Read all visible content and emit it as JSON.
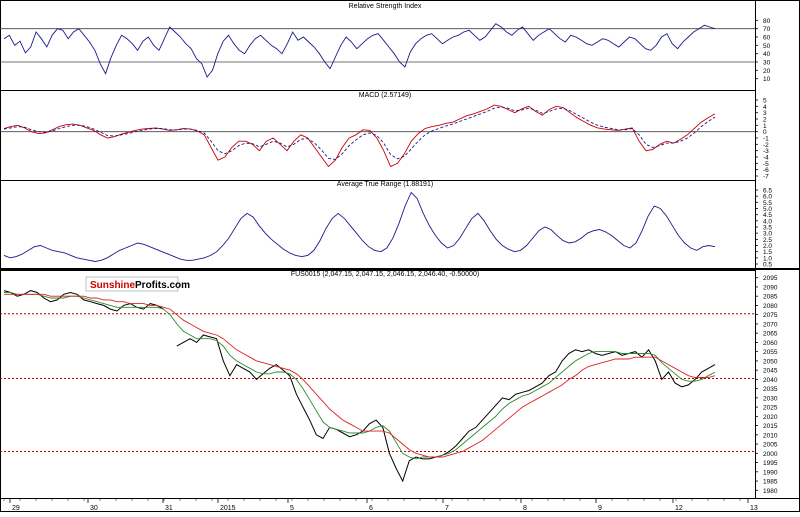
{
  "colors": {
    "background": "#ffffff",
    "frame": "#000000",
    "series_blue": "#1a1a8c",
    "signal_red": "#cc0000",
    "sma_green": "#2e8b2e",
    "ema_red": "#dd2222",
    "dashed_line": "#b00000",
    "level_line": "#444444",
    "logo_red": "#cc0000"
  },
  "logo": {
    "part1": "Sunshine",
    "part2": "Profits",
    "part3": ".com"
  },
  "chart_data": [
    {
      "type": "line",
      "title": "Relative Strength Index",
      "ylim": [
        0,
        90
      ],
      "yticks": [
        "80",
        "70",
        "60",
        "50",
        "40",
        "30",
        "20",
        "10"
      ],
      "reference_lines": [
        70,
        30
      ],
      "grid": false,
      "series": [
        {
          "values": [
            58,
            62,
            50,
            55,
            41,
            48,
            66,
            58,
            48,
            62,
            70,
            68,
            58,
            66,
            70,
            62,
            54,
            44,
            28,
            16,
            35,
            50,
            62,
            58,
            52,
            44,
            55,
            60,
            50,
            44,
            58,
            72,
            66,
            60,
            52,
            46,
            34,
            28,
            12,
            20,
            40,
            55,
            62,
            52,
            44,
            40,
            50,
            58,
            62,
            56,
            50,
            46,
            40,
            52,
            66,
            56,
            60,
            54,
            48,
            40,
            30,
            22,
            36,
            50,
            60,
            54,
            46,
            52,
            58,
            62,
            64,
            56,
            48,
            40,
            30,
            24,
            42,
            52,
            58,
            62,
            64,
            58,
            52,
            56,
            60,
            62,
            66,
            68,
            62,
            56,
            60,
            68,
            76,
            72,
            66,
            62,
            68,
            72,
            64,
            56,
            62,
            66,
            70,
            64,
            58,
            54,
            62,
            60,
            56,
            52,
            50,
            54,
            58,
            56,
            52,
            48,
            54,
            60,
            58,
            52,
            46,
            44,
            50,
            60,
            64,
            52,
            46,
            54,
            60,
            66,
            70,
            74,
            72,
            70
          ]
        }
      ]
    },
    {
      "type": "line",
      "title": "MACD (2.57149)",
      "ylim": [
        -7,
        5
      ],
      "yticks": [
        "5",
        "4",
        "3",
        "2",
        "1",
        "0",
        "-1",
        "-2",
        "-3",
        "-4",
        "-5",
        "-6",
        "-7"
      ],
      "reference_lines": [
        0
      ],
      "grid": false,
      "series": [
        {
          "values": [
            0.5,
            0.8,
            1.0,
            0.6,
            0.0,
            -0.3,
            -0.2,
            0.3,
            0.8,
            1.1,
            1.2,
            1.0,
            0.6,
            0.2,
            -0.5,
            -1.0,
            -0.8,
            -0.4,
            -0.1,
            0.2,
            0.4,
            0.5,
            0.6,
            0.4,
            0.2,
            0.3,
            0.5,
            0.4,
            0.1,
            -0.5,
            -2.5,
            -4.5,
            -4.0,
            -2.5,
            -1.5,
            -1.5,
            -2.0,
            -3.0,
            -1.5,
            -1.0,
            -2.0,
            -3.0,
            -1.5,
            -0.5,
            -1.0,
            -2.5,
            -4.0,
            -5.5,
            -4.5,
            -2.5,
            -1.0,
            -0.5,
            0.3,
            0.2,
            -1.0,
            -3.0,
            -5.5,
            -5.0,
            -3.5,
            -1.5,
            -0.3,
            0.5,
            0.8,
            1.0,
            1.3,
            1.5,
            2.0,
            2.5,
            2.8,
            3.2,
            3.6,
            4.2,
            4.0,
            3.5,
            3.0,
            3.6,
            4.0,
            3.2,
            2.6,
            3.5,
            4.0,
            3.8,
            3.0,
            2.2,
            1.6,
            1.0,
            0.6,
            0.4,
            0.3,
            0.2,
            0.4,
            0.6,
            -1.5,
            -3.0,
            -2.8,
            -2.0,
            -1.5,
            -1.8,
            -1.2,
            -0.5,
            0.5,
            1.5,
            2.2,
            2.8
          ]
        },
        {
          "values": [
            0.4,
            0.6,
            0.8,
            0.7,
            0.3,
            0.0,
            -0.1,
            0.1,
            0.5,
            0.8,
            1.0,
            1.0,
            0.8,
            0.4,
            -0.1,
            -0.6,
            -0.7,
            -0.5,
            -0.3,
            0.0,
            0.2,
            0.4,
            0.5,
            0.5,
            0.3,
            0.3,
            0.4,
            0.4,
            0.2,
            -0.2,
            -1.5,
            -3.0,
            -3.5,
            -3.0,
            -2.2,
            -1.8,
            -1.9,
            -2.4,
            -2.0,
            -1.5,
            -1.8,
            -2.4,
            -2.0,
            -1.2,
            -1.1,
            -1.8,
            -2.9,
            -4.2,
            -4.4,
            -3.5,
            -2.2,
            -1.3,
            -0.5,
            -0.2,
            -0.6,
            -1.8,
            -3.6,
            -4.3,
            -3.9,
            -2.7,
            -1.5,
            -0.5,
            0.1,
            0.5,
            0.9,
            1.2,
            1.6,
            2.0,
            2.4,
            2.8,
            3.2,
            3.7,
            3.9,
            3.7,
            3.3,
            3.4,
            3.7,
            3.4,
            2.9,
            3.2,
            3.6,
            3.7,
            3.3,
            2.7,
            2.1,
            1.5,
            1.0,
            0.7,
            0.5,
            0.3,
            0.3,
            0.5,
            -0.5,
            -2.0,
            -2.5,
            -2.2,
            -1.8,
            -1.8,
            -1.5,
            -1.0,
            -0.2,
            0.8,
            1.6,
            2.3
          ]
        }
      ]
    },
    {
      "type": "line",
      "title": "Average True Range (1.88191)",
      "ylim": [
        0.5,
        6.5
      ],
      "yticks": [
        "6.5",
        "6.0",
        "5.5",
        "5.0",
        "4.5",
        "4.0",
        "3.5",
        "3.0",
        "2.5",
        "2.0",
        "1.5",
        "1.0",
        "0.5"
      ],
      "grid": false,
      "series": [
        {
          "values": [
            1.2,
            1.0,
            1.1,
            1.3,
            1.6,
            1.9,
            2.0,
            1.8,
            1.6,
            1.5,
            1.4,
            1.2,
            1.0,
            0.9,
            0.8,
            0.7,
            0.8,
            1.0,
            1.3,
            1.6,
            1.8,
            2.0,
            2.2,
            2.1,
            1.9,
            1.7,
            1.5,
            1.3,
            1.1,
            0.9,
            0.8,
            0.8,
            0.9,
            1.0,
            1.2,
            1.5,
            2.0,
            2.6,
            3.4,
            4.2,
            4.6,
            4.3,
            3.6,
            3.0,
            2.5,
            2.1,
            1.7,
            1.4,
            1.2,
            1.1,
            1.2,
            1.6,
            2.4,
            3.4,
            4.2,
            4.6,
            4.2,
            3.6,
            3.0,
            2.4,
            1.9,
            1.6,
            1.5,
            1.8,
            2.6,
            3.8,
            5.2,
            6.3,
            5.8,
            4.6,
            3.6,
            2.8,
            2.2,
            1.8,
            2.0,
            2.6,
            3.4,
            4.2,
            4.6,
            4.0,
            3.2,
            2.5,
            2.0,
            1.7,
            1.5,
            1.6,
            2.0,
            2.6,
            3.2,
            3.5,
            3.3,
            2.8,
            2.4,
            2.2,
            2.3,
            2.6,
            3.0,
            3.2,
            3.3,
            3.1,
            2.8,
            2.4,
            2.0,
            1.8,
            2.2,
            3.2,
            4.4,
            5.2,
            5.0,
            4.4,
            3.6,
            2.8,
            2.2,
            1.8,
            1.6,
            1.9,
            2.0,
            1.9
          ]
        }
      ]
    },
    {
      "type": "line",
      "title": "FUS0015 (2,047.15, 2,047.15, 2,046.15, 2,046.40, -0.50000)",
      "ylim": [
        1978,
        2097
      ],
      "yticks": [
        "2095",
        "2090",
        "2085",
        "2080",
        "2075",
        "2070",
        "2065",
        "2060",
        "2055",
        "2050",
        "2045",
        "2040",
        "2035",
        "2030",
        "2025",
        "2020",
        "2015",
        "2010",
        "2005",
        "2000",
        "1995",
        "1990",
        "1985",
        "1980"
      ],
      "x_labels": [
        "29",
        "30",
        "31",
        "2015",
        "5",
        "6",
        "7",
        "8",
        "9",
        "12",
        "13"
      ],
      "reference_lines": [
        2075.5,
        2040.5,
        2001
      ],
      "grid": false,
      "series": [
        {
          "values": [
            2088,
            2087,
            2085,
            2086,
            2088,
            2087,
            2084,
            2082,
            2083,
            2086,
            2087,
            2086,
            2083,
            2082,
            2081,
            2080,
            2078,
            2077,
            2080,
            2081,
            2079,
            2078,
            2081,
            2080,
            2078,
            null,
            2058,
            2060,
            2062,
            2060,
            2064,
            2063,
            2062,
            2050,
            2042,
            2048,
            2046,
            2044,
            2040,
            2043,
            2046,
            2048,
            2045,
            2042,
            2032,
            2025,
            2018,
            2010,
            2008,
            2014,
            2013,
            2011,
            2009,
            2010,
            2012,
            2016,
            2018,
            2014,
            2000,
            1992,
            1985,
            1996,
            1998,
            1997,
            1997,
            1998,
            1999,
            2001,
            2004,
            2008,
            2012,
            2014,
            2018,
            2022,
            2026,
            2030,
            2029,
            2032,
            2033,
            2034,
            2036,
            2038,
            2042,
            2044,
            2050,
            2054,
            2056,
            2055,
            2056,
            2054,
            2053,
            2054,
            2055,
            2053,
            2054,
            2055,
            2052,
            2056,
            2050,
            2040,
            2044,
            2038,
            2036,
            2037,
            2040,
            2044,
            2046,
            2048
          ]
        },
        {
          "values": [
            2087,
            2087,
            2086,
            2086,
            2086,
            2086,
            2085,
            2084,
            2084,
            2084,
            2085,
            2085,
            2084,
            2083,
            2082,
            2081,
            2080,
            2079,
            2079,
            2079,
            2079,
            2079,
            2079,
            2079,
            2078,
            2075,
            2070,
            2066,
            2064,
            2062,
            2062,
            2062,
            2061,
            2058,
            2053,
            2050,
            2048,
            2046,
            2044,
            2043,
            2043,
            2044,
            2044,
            2043,
            2040,
            2035,
            2029,
            2023,
            2017,
            2014,
            2013,
            2012,
            2011,
            2011,
            2011,
            2012,
            2014,
            2015,
            2012,
            2006,
            2000,
            1998,
            1997,
            1998,
            1998,
            1998,
            1999,
            2000,
            2002,
            2005,
            2008,
            2011,
            2014,
            2017,
            2020,
            2024,
            2027,
            2029,
            2031,
            2032,
            2034,
            2036,
            2038,
            2041,
            2044,
            2047,
            2050,
            2052,
            2054,
            2055,
            2055,
            2055,
            2055,
            2054,
            2054,
            2054,
            2054,
            2054,
            2053,
            2049,
            2046,
            2043,
            2040,
            2039,
            2039,
            2040,
            2042,
            2044
          ]
        },
        {
          "values": [
            2086,
            2086,
            2086,
            2086,
            2086,
            2086,
            2086,
            2085,
            2085,
            2085,
            2085,
            2085,
            2085,
            2084,
            2084,
            2083,
            2083,
            2082,
            2082,
            2081,
            2081,
            2081,
            2080,
            2080,
            2079,
            2078,
            2075,
            2072,
            2070,
            2068,
            2066,
            2065,
            2064,
            2062,
            2059,
            2056,
            2054,
            2052,
            2050,
            2049,
            2048,
            2047,
            2046,
            2045,
            2043,
            2040,
            2036,
            2032,
            2028,
            2024,
            2021,
            2018,
            2016,
            2014,
            2012,
            2012,
            2012,
            2012,
            2011,
            2008,
            2005,
            2002,
            2000,
            1999,
            1998,
            1998,
            1998,
            1999,
            2000,
            2001,
            2003,
            2005,
            2007,
            2010,
            2013,
            2016,
            2019,
            2022,
            2025,
            2027,
            2029,
            2031,
            2033,
            2035,
            2037,
            2040,
            2042,
            2045,
            2047,
            2048,
            2049,
            2050,
            2051,
            2051,
            2051,
            2052,
            2052,
            2052,
            2052,
            2050,
            2048,
            2046,
            2044,
            2042,
            2041,
            2041,
            2041,
            2042
          ]
        }
      ]
    }
  ]
}
